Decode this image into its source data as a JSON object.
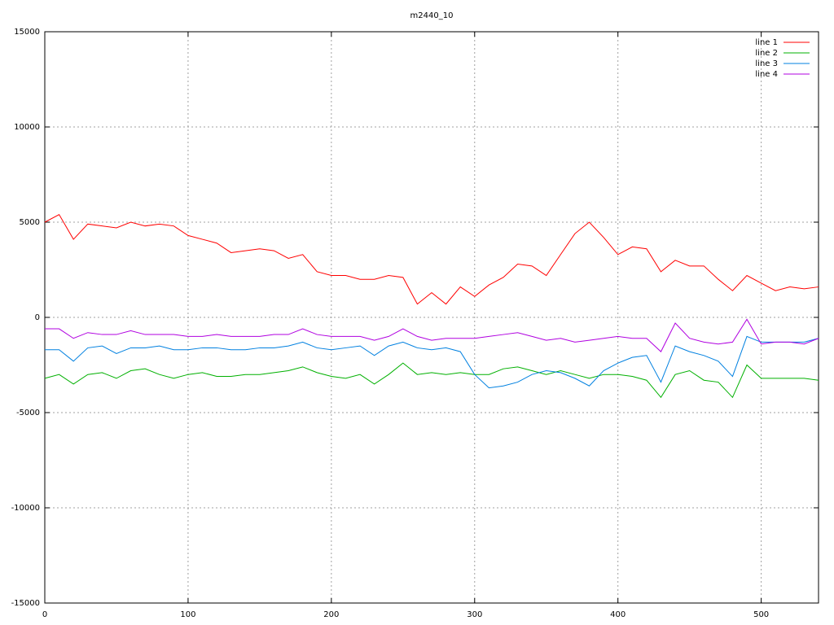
{
  "chart_data": {
    "type": "line",
    "title": "m2440_10",
    "x": [
      0,
      10,
      20,
      30,
      40,
      50,
      60,
      70,
      80,
      90,
      100,
      110,
      120,
      130,
      140,
      150,
      160,
      170,
      180,
      190,
      200,
      210,
      220,
      230,
      240,
      250,
      260,
      270,
      280,
      290,
      300,
      310,
      320,
      330,
      340,
      350,
      360,
      370,
      380,
      390,
      400,
      410,
      420,
      430,
      440,
      450,
      460,
      470,
      480,
      490,
      500,
      510,
      520,
      530,
      540
    ],
    "xlim": [
      0,
      540
    ],
    "xticks": [
      0,
      100,
      200,
      300,
      400,
      500
    ],
    "ylim": [
      -15000,
      15000
    ],
    "yticks": [
      -15000,
      -10000,
      -5000,
      0,
      5000,
      10000,
      15000
    ],
    "grid": true,
    "legend": "top-right",
    "series": [
      {
        "name": "line 1",
        "color": "#ff0000",
        "values": [
          5000,
          5400,
          4100,
          4900,
          4800,
          4700,
          5000,
          4800,
          4900,
          4800,
          4300,
          4100,
          3900,
          3400,
          3500,
          3600,
          3500,
          3100,
          3300,
          2400,
          2200,
          2200,
          2000,
          2000,
          2200,
          2100,
          700,
          1300,
          700,
          1600,
          1100,
          1700,
          2100,
          2800,
          2700,
          2200,
          3300,
          4400,
          5000,
          4200,
          3300,
          3700,
          3600,
          2400,
          3000,
          2700,
          2700,
          2000,
          1400,
          2200,
          1800,
          1400,
          1600,
          1500,
          1600
        ]
      },
      {
        "name": "line 2",
        "color": "#00b000",
        "values": [
          -3200,
          -3000,
          -3500,
          -3000,
          -2900,
          -3200,
          -2800,
          -2700,
          -3000,
          -3200,
          -3000,
          -2900,
          -3100,
          -3100,
          -3000,
          -3000,
          -2900,
          -2800,
          -2600,
          -2900,
          -3100,
          -3200,
          -3000,
          -3500,
          -3000,
          -2400,
          -3000,
          -2900,
          -3000,
          -2900,
          -3000,
          -3000,
          -2700,
          -2600,
          -2800,
          -3000,
          -2800,
          -3000,
          -3200,
          -3000,
          -3000,
          -3100,
          -3300,
          -4200,
          -3000,
          -2800,
          -3300,
          -3400,
          -4200,
          -2500,
          -3200,
          -3200,
          -3200,
          -3200,
          -3300
        ]
      },
      {
        "name": "line 3",
        "color": "#0080e0",
        "values": [
          -1700,
          -1700,
          -2300,
          -1600,
          -1500,
          -1900,
          -1600,
          -1600,
          -1500,
          -1700,
          -1700,
          -1600,
          -1600,
          -1700,
          -1700,
          -1600,
          -1600,
          -1500,
          -1300,
          -1600,
          -1700,
          -1600,
          -1500,
          -2000,
          -1500,
          -1300,
          -1600,
          -1700,
          -1600,
          -1800,
          -3000,
          -3700,
          -3600,
          -3400,
          -3000,
          -2800,
          -2900,
          -3200,
          -3600,
          -2800,
          -2400,
          -2100,
          -2000,
          -3400,
          -1500,
          -1800,
          -2000,
          -2300,
          -3100,
          -1000,
          -1300,
          -1300,
          -1300,
          -1300,
          -1100
        ]
      },
      {
        "name": "line 4",
        "color": "#b000e0",
        "values": [
          -600,
          -600,
          -1100,
          -800,
          -900,
          -900,
          -700,
          -900,
          -900,
          -900,
          -1000,
          -1000,
          -900,
          -1000,
          -1000,
          -1000,
          -900,
          -900,
          -600,
          -900,
          -1000,
          -1000,
          -1000,
          -1200,
          -1000,
          -600,
          -1000,
          -1200,
          -1100,
          -1100,
          -1100,
          -1000,
          -900,
          -800,
          -1000,
          -1200,
          -1100,
          -1300,
          -1200,
          -1100,
          -1000,
          -1100,
          -1100,
          -1800,
          -300,
          -1100,
          -1300,
          -1400,
          -1300,
          -100,
          -1400,
          -1300,
          -1300,
          -1400,
          -1100
        ]
      }
    ]
  }
}
